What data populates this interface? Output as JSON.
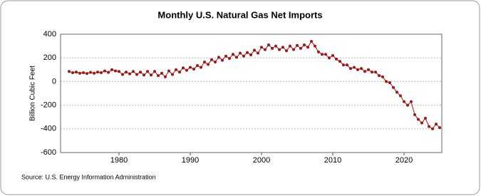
{
  "chart_data": {
    "type": "line",
    "title": "Monthly U.S. Natural Gas Net Imports",
    "y_label": "Billion Cubic Feet",
    "source": "Source: U.S. Energy Information Administration",
    "color": "#a31515",
    "grid": true,
    "xlim": [
      1971.8,
      2025.3
    ],
    "xticks": [
      1980,
      1990,
      2000,
      2010,
      2020
    ],
    "ylim": [
      -600,
      400
    ],
    "yticks": [
      -600,
      -400,
      -200,
      0,
      200,
      400
    ],
    "x": [
      1973,
      1973.5,
      1974,
      1974.5,
      1975,
      1975.5,
      1976,
      1976.5,
      1977,
      1977.5,
      1978,
      1978.5,
      1979,
      1979.5,
      1980,
      1980.5,
      1981,
      1981.5,
      1982,
      1982.5,
      1983,
      1983.5,
      1984,
      1984.5,
      1985,
      1985.5,
      1986,
      1986.5,
      1987,
      1987.5,
      1988,
      1988.5,
      1989,
      1989.5,
      1990,
      1990.5,
      1991,
      1991.5,
      1992,
      1992.5,
      1993,
      1993.5,
      1994,
      1994.5,
      1995,
      1995.5,
      1996,
      1996.5,
      1997,
      1997.5,
      1998,
      1998.5,
      1999,
      1999.5,
      2000,
      2000.5,
      2001,
      2001.5,
      2002,
      2002.5,
      2003,
      2003.5,
      2004,
      2004.5,
      2005,
      2005.5,
      2006,
      2006.5,
      2007,
      2007.5,
      2008,
      2008.5,
      2009,
      2009.5,
      2010,
      2010.5,
      2011,
      2011.5,
      2012,
      2012.5,
      2013,
      2013.5,
      2014,
      2014.5,
      2015,
      2015.5,
      2016,
      2016.5,
      2017,
      2017.5,
      2018,
      2018.5,
      2019,
      2019.5,
      2020,
      2020.5,
      2021,
      2021.5,
      2022,
      2022.5,
      2023,
      2023.5,
      2024,
      2024.5,
      2025
    ],
    "values": [
      85,
      75,
      80,
      70,
      75,
      68,
      78,
      70,
      80,
      75,
      90,
      78,
      100,
      90,
      85,
      60,
      80,
      65,
      85,
      60,
      80,
      55,
      85,
      55,
      85,
      50,
      70,
      40,
      90,
      60,
      100,
      80,
      115,
      95,
      120,
      105,
      135,
      120,
      165,
      145,
      185,
      165,
      205,
      180,
      215,
      195,
      230,
      205,
      240,
      215,
      245,
      225,
      265,
      240,
      290,
      270,
      310,
      280,
      300,
      270,
      290,
      260,
      300,
      270,
      305,
      280,
      310,
      290,
      340,
      300,
      250,
      230,
      230,
      200,
      220,
      190,
      170,
      140,
      140,
      110,
      120,
      100,
      110,
      85,
      100,
      80,
      80,
      50,
      40,
      0,
      -10,
      -50,
      -90,
      -120,
      -170,
      -200,
      -170,
      -280,
      -320,
      -350,
      -310,
      -380,
      -400,
      -360,
      -390
    ]
  }
}
